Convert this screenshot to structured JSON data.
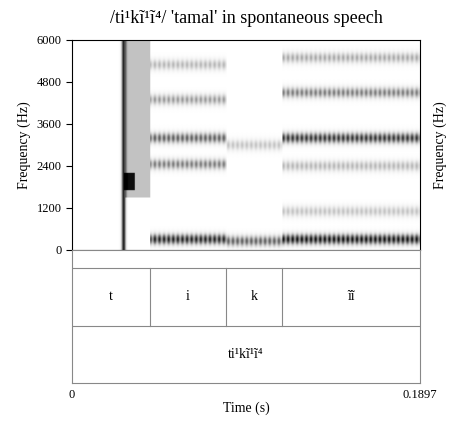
{
  "chart_data": {
    "type": "spectrogram",
    "title": "/ti¹kĩ¹ĩ⁴/ 'tamal' in spontaneous speech",
    "y_label": "Frequency (Hz)",
    "x_label": "Time (s)",
    "ylim": [
      0,
      6000
    ],
    "yticks": [
      0,
      1200,
      2400,
      3600,
      4800,
      6000
    ],
    "xlim": [
      0,
      0.1897
    ],
    "xticks": [
      0,
      0.1897
    ],
    "color": "#000000",
    "segments": [
      {
        "label": "t",
        "start": 0,
        "end": 0.0425,
        "voiced": false,
        "formants": [],
        "bursts": [
          {
            "time": 0.028,
            "intensity": 0.9
          }
        ],
        "noise": [
          {
            "start": 0.029,
            "end": 0.0425,
            "low": 1500,
            "high": 6000,
            "intensity": 0.35
          },
          {
            "start": 0.028,
            "end": 0.034,
            "low": 1700,
            "high": 2200,
            "intensity": 0.6
          }
        ]
      },
      {
        "label": "i",
        "start": 0.0425,
        "end": 0.0839,
        "voiced": true,
        "formants": [
          {
            "frequency": 300,
            "intensity": 0.9
          },
          {
            "frequency": 2450,
            "intensity": 0.6
          },
          {
            "frequency": 3200,
            "intensity": 0.7
          },
          {
            "frequency": 4300,
            "intensity": 0.5
          },
          {
            "frequency": 5300,
            "intensity": 0.4
          }
        ],
        "bursts": [],
        "noise": []
      },
      {
        "label": "k",
        "start": 0.0839,
        "end": 0.1145,
        "voiced": true,
        "formants": [
          {
            "frequency": 250,
            "intensity": 0.7
          },
          {
            "frequency": 3000,
            "intensity": 0.35
          }
        ],
        "bursts": [],
        "noise": []
      },
      {
        "label": "ĩĩ",
        "start": 0.1145,
        "end": 0.1897,
        "voiced": true,
        "formants": [
          {
            "frequency": 300,
            "intensity": 0.95
          },
          {
            "frequency": 1100,
            "intensity": 0.35
          },
          {
            "frequency": 2400,
            "intensity": 0.4
          },
          {
            "frequency": 3200,
            "intensity": 0.85
          },
          {
            "frequency": 4500,
            "intensity": 0.6
          },
          {
            "frequency": 5500,
            "intensity": 0.45
          }
        ],
        "bursts": [],
        "noise": []
      }
    ],
    "word": {
      "label": "ti¹kĩ¹ĩ⁴",
      "start": 0,
      "end": 0.1897
    }
  }
}
